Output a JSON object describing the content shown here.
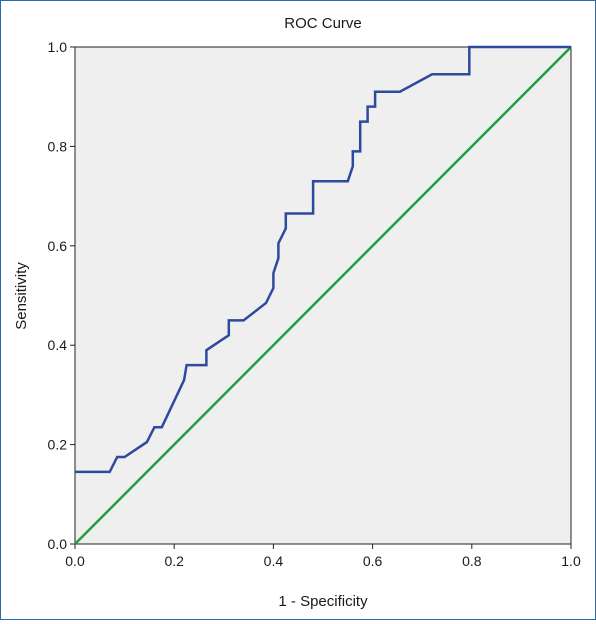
{
  "chart_data": {
    "type": "line",
    "title": "ROC Curve",
    "xlabel": "1 - Specificity",
    "ylabel": "Sensitivity",
    "xlim": [
      0,
      1
    ],
    "ylim": [
      0,
      1
    ],
    "x_ticks": [
      "0.0",
      "0.2",
      "0.4",
      "0.6",
      "0.8",
      "1.0"
    ],
    "y_ticks": [
      "0.0",
      "0.2",
      "0.4",
      "0.6",
      "0.8",
      "1.0"
    ],
    "grid": false,
    "legend": "none",
    "plot_background": "#efefef",
    "series": [
      {
        "color": "#2e4a9e",
        "points": [
          [
            0.0,
            0.145
          ],
          [
            0.07,
            0.145
          ],
          [
            0.085,
            0.175
          ],
          [
            0.1,
            0.175
          ],
          [
            0.145,
            0.205
          ],
          [
            0.16,
            0.235
          ],
          [
            0.175,
            0.235
          ],
          [
            0.22,
            0.33
          ],
          [
            0.225,
            0.36
          ],
          [
            0.265,
            0.36
          ],
          [
            0.265,
            0.39
          ],
          [
            0.295,
            0.41
          ],
          [
            0.31,
            0.42
          ],
          [
            0.31,
            0.45
          ],
          [
            0.34,
            0.45
          ],
          [
            0.385,
            0.485
          ],
          [
            0.4,
            0.515
          ],
          [
            0.4,
            0.545
          ],
          [
            0.41,
            0.575
          ],
          [
            0.41,
            0.605
          ],
          [
            0.425,
            0.635
          ],
          [
            0.425,
            0.665
          ],
          [
            0.48,
            0.665
          ],
          [
            0.48,
            0.73
          ],
          [
            0.55,
            0.73
          ],
          [
            0.56,
            0.76
          ],
          [
            0.56,
            0.79
          ],
          [
            0.575,
            0.79
          ],
          [
            0.575,
            0.85
          ],
          [
            0.59,
            0.85
          ],
          [
            0.59,
            0.88
          ],
          [
            0.605,
            0.88
          ],
          [
            0.605,
            0.91
          ],
          [
            0.655,
            0.91
          ],
          [
            0.72,
            0.945
          ],
          [
            0.795,
            0.945
          ],
          [
            0.795,
            1.0
          ],
          [
            1.0,
            1.0
          ]
        ]
      },
      {
        "color": "#1fa03a",
        "points": [
          [
            0,
            0
          ],
          [
            1,
            1
          ]
        ]
      }
    ]
  }
}
